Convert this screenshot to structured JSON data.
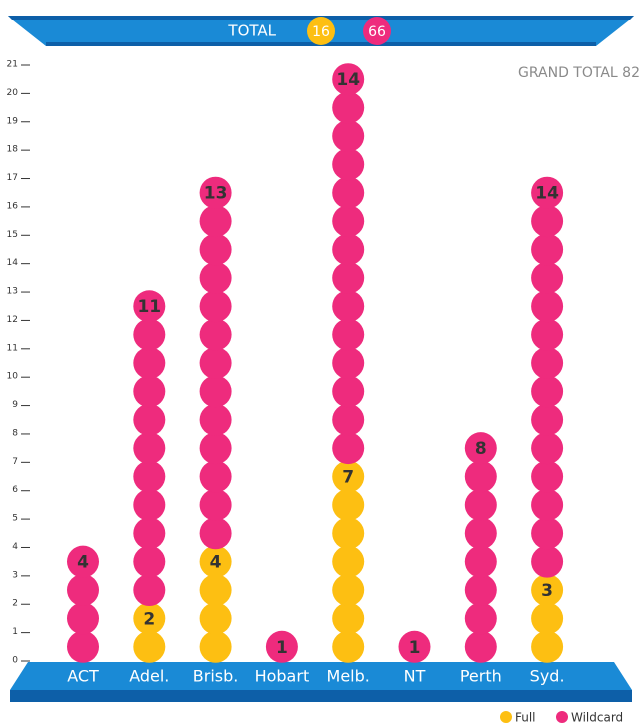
{
  "chart_data": {
    "type": "dot_stack",
    "total_label": "TOTAL",
    "grand_total_label": "GRAND TOTAL",
    "grand_total": 82,
    "categories": [
      "ACT",
      "Adel.",
      "Brisb.",
      "Hobart",
      "Melb.",
      "NT",
      "Perth",
      "Syd."
    ],
    "series": [
      {
        "name": "Full",
        "color": "#fdbf12",
        "total": 16,
        "values": [
          0,
          2,
          4,
          0,
          7,
          0,
          0,
          3
        ]
      },
      {
        "name": "Wildcard",
        "color": "#ee2b7d",
        "total": 66,
        "values": [
          4,
          11,
          13,
          1,
          14,
          1,
          8,
          14
        ]
      }
    ],
    "ylim": [
      0,
      21
    ],
    "yticks": [
      0,
      1,
      2,
      3,
      4,
      5,
      6,
      7,
      8,
      9,
      10,
      11,
      12,
      13,
      14,
      15,
      16,
      17,
      18,
      19,
      20,
      21
    ]
  }
}
